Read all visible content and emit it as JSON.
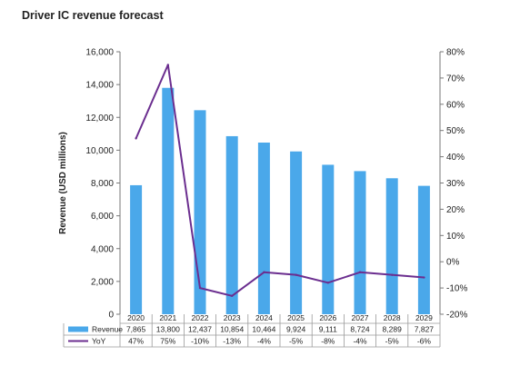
{
  "chart_data": {
    "type": "bar",
    "title": "Driver IC revenue forecast",
    "ylabel": "Revenue (USD millions)",
    "xlabel": "",
    "categories": [
      "2020",
      "2021",
      "2022",
      "2023",
      "2024",
      "2025",
      "2026",
      "2027",
      "2028",
      "2029"
    ],
    "ylim": [
      0,
      16000
    ],
    "y_ticks": [
      "0",
      "2,000",
      "4,000",
      "6,000",
      "8,000",
      "10,000",
      "12,000",
      "14,000",
      "16,000"
    ],
    "y2lim": [
      -20,
      80
    ],
    "y2_ticks": [
      "-20%",
      "-10%",
      "0%",
      "10%",
      "20%",
      "30%",
      "40%",
      "50%",
      "60%",
      "70%",
      "80%"
    ],
    "grid": false,
    "legend": "data-table",
    "series": [
      {
        "name": "Revenue",
        "type": "bar",
        "axis": "left",
        "color": "#4aa8ea",
        "values": [
          7865,
          13800,
          12437,
          10854,
          10464,
          9924,
          9111,
          8724,
          8289,
          7827
        ],
        "labels": [
          "7,865",
          "13,800",
          "12,437",
          "10,854",
          "10,464",
          "9,924",
          "9,111",
          "8,724",
          "8,289",
          "7,827"
        ]
      },
      {
        "name": "YoY",
        "type": "line",
        "axis": "right",
        "color": "#6b2e8f",
        "values": [
          47,
          75,
          -10,
          -13,
          -4,
          -5,
          -8,
          -4,
          -5,
          -6
        ],
        "labels": [
          "47%",
          "75%",
          "-10%",
          "-13%",
          "-4%",
          "-5%",
          "-8%",
          "-4%",
          "-5%",
          "-6%"
        ]
      }
    ]
  }
}
